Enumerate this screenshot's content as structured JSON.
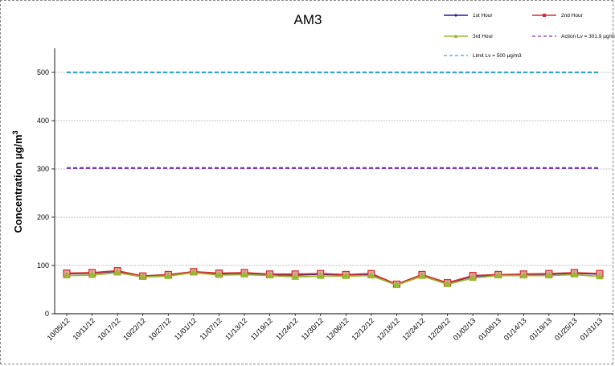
{
  "chart_data": {
    "type": "line",
    "title": "AM3",
    "xlabel": "",
    "ylabel": "Concentration µg/m",
    "ylabel_sup": "3",
    "ylim": [
      0,
      550
    ],
    "yticks": [
      0,
      100,
      200,
      300,
      400,
      500
    ],
    "grid": true,
    "legend_position": "top-right",
    "categories": [
      "10/05/12",
      "10/11/12",
      "10/17/12",
      "10/22/12",
      "10/27/12",
      "11/01/12",
      "11/07/12",
      "11/13/12",
      "11/19/12",
      "11/24/12",
      "11/30/12",
      "12/06/12",
      "12/12/12",
      "12/18/12",
      "12/24/12",
      "12/29/12",
      "01/02/13",
      "01/08/13",
      "01/14/13",
      "01/19/13",
      "01/25/13",
      "01/31/13"
    ],
    "series": [
      {
        "name": "1st Hour",
        "color": "#1f1f8f",
        "marker": "diamond",
        "values": [
          83,
          84,
          88,
          78,
          80,
          86,
          83,
          84,
          81,
          80,
          82,
          80,
          82,
          60,
          80,
          63,
          78,
          80,
          81,
          82,
          84,
          82
        ]
      },
      {
        "name": "2nd Hour",
        "color": "#d03030",
        "marker": "square",
        "values": [
          84,
          85,
          89,
          78,
          81,
          87,
          84,
          85,
          82,
          82,
          83,
          81,
          83,
          61,
          81,
          64,
          79,
          81,
          82,
          83,
          85,
          83
        ]
      },
      {
        "name": "3rd Hour",
        "color": "#9ab832",
        "marker": "triangle",
        "values": [
          79,
          80,
          85,
          76,
          78,
          85,
          80,
          81,
          79,
          76,
          78,
          78,
          79,
          59,
          78,
          61,
          74,
          79,
          79,
          79,
          81,
          77
        ]
      },
      {
        "name": "Action Lv = 301.9 µg/m3",
        "color": "#7a3fb8",
        "dash": "dashed",
        "values": [
          301.9,
          301.9,
          301.9,
          301.9,
          301.9,
          301.9,
          301.9,
          301.9,
          301.9,
          301.9,
          301.9,
          301.9,
          301.9,
          301.9,
          301.9,
          301.9,
          301.9,
          301.9,
          301.9,
          301.9,
          301.9,
          301.9
        ]
      },
      {
        "name": "Limit Lv = 500 µg/m3",
        "color": "#2fa9c9",
        "dash": "dashed",
        "values": [
          500,
          500,
          500,
          500,
          500,
          500,
          500,
          500,
          500,
          500,
          500,
          500,
          500,
          500,
          500,
          500,
          500,
          500,
          500,
          500,
          500,
          500
        ]
      }
    ]
  }
}
